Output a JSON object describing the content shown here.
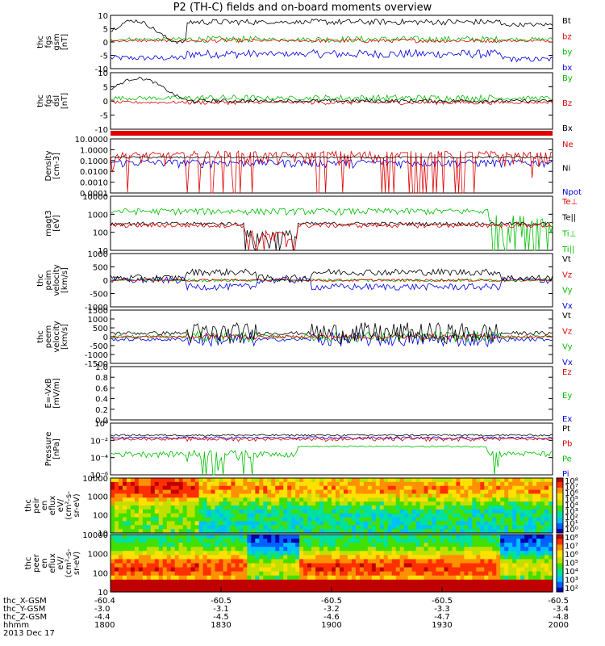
{
  "title": "P2 (TH-C) fields and on-board moments overview",
  "chart_data": {
    "type": "line",
    "panels": [
      {
        "id": "fgs_gsm",
        "ylabel": [
          "thc",
          "fgs",
          "gsm",
          "[nT]"
        ],
        "yticks": [
          "10",
          "5",
          "0",
          "-5",
          "-10"
        ],
        "ylim": [
          -10,
          10
        ],
        "legend": [
          {
            "name": "Bt",
            "color": "#000000"
          },
          {
            "name": "bz",
            "color": "#e00000"
          },
          {
            "name": "by",
            "color": "#00c000"
          },
          {
            "name": "bx",
            "color": "#0000e0"
          }
        ]
      },
      {
        "id": "fgs_dsl",
        "ylabel": [
          "thc",
          "fgs",
          "dsl",
          "[nT]"
        ],
        "yticks": [
          "10",
          "5",
          "0",
          "-5",
          "-10"
        ],
        "ylim": [
          -10,
          10
        ],
        "legend": [
          {
            "name": "By",
            "color": "#00c000"
          },
          {
            "name": "Bz",
            "color": "#e00000"
          },
          {
            "name": "Bx",
            "color": "#000000"
          }
        ]
      },
      {
        "id": "density",
        "ylabel": [
          "Density",
          "[cm-3]"
        ],
        "yticks": [
          "10.0000",
          "1.0000",
          "0.1000",
          "0.0100",
          "0.0010",
          "0.0001"
        ],
        "ylim": [
          0.0001,
          10
        ],
        "log": true,
        "legend": [
          {
            "name": "Ne",
            "color": "#e00000"
          },
          {
            "name": "Ni",
            "color": "#000000"
          },
          {
            "name": "Npot",
            "color": "#0000e0"
          }
        ]
      },
      {
        "id": "temperature",
        "ylabel": [
          "magt3",
          "[eV]"
        ],
        "yticks": [
          "10000",
          "1000",
          "100",
          "10"
        ],
        "ylim": [
          10,
          10000
        ],
        "log": true,
        "legend": [
          {
            "name": "Te⊥",
            "color": "#e00000"
          },
          {
            "name": "Te||",
            "color": "#000000"
          },
          {
            "name": "Ti⊥",
            "color": "#00c000"
          },
          {
            "name": "Ti||",
            "color": "#00c000"
          }
        ]
      },
      {
        "id": "peim_velocity",
        "ylabel": [
          "thc",
          "peim",
          "velocity",
          "[km/s]"
        ],
        "yticks": [
          "1000",
          "500",
          "0",
          "-500",
          "-1000"
        ],
        "ylim": [
          -1000,
          1000
        ],
        "legend": [
          {
            "name": "Vt",
            "color": "#000000"
          },
          {
            "name": "Vz",
            "color": "#e00000"
          },
          {
            "name": "Vy",
            "color": "#00c000"
          },
          {
            "name": "Vx",
            "color": "#0000e0"
          }
        ]
      },
      {
        "id": "peem_velocity",
        "ylabel": [
          "thc",
          "peem",
          "velocity",
          "[km/s]"
        ],
        "yticks": [
          "1500",
          "1000",
          "500",
          "0",
          "-500",
          "-1000",
          "-1500"
        ],
        "ylim": [
          -1500,
          1500
        ],
        "legend": [
          {
            "name": "Vt",
            "color": "#000000"
          },
          {
            "name": "Vz",
            "color": "#e00000"
          },
          {
            "name": "Vy",
            "color": "#00c000"
          },
          {
            "name": "Vx",
            "color": "#0000e0"
          }
        ]
      },
      {
        "id": "efield",
        "ylabel": [
          "E=-VxB",
          "[mV/m]"
        ],
        "yticks": [
          "1.0",
          "0.8",
          "0.6",
          "0.4",
          "0.2",
          "0.0"
        ],
        "ylim": [
          0,
          1
        ],
        "legend": [
          {
            "name": "Ez",
            "color": "#e00000"
          },
          {
            "name": "Ey",
            "color": "#00c000"
          },
          {
            "name": "Ex",
            "color": "#0000e0"
          }
        ]
      },
      {
        "id": "pressure",
        "ylabel": [
          "Pressure",
          "[nPa]"
        ],
        "yticks": [
          "10⁰",
          "10⁻²",
          "10⁻⁴",
          "10⁻⁶"
        ],
        "ylim": [
          1e-06,
          1
        ],
        "log": true,
        "legend": [
          {
            "name": "Pt",
            "color": "#000000"
          },
          {
            "name": "Pb",
            "color": "#e00000"
          },
          {
            "name": "Pe",
            "color": "#00c000"
          },
          {
            "name": "Pi",
            "color": "#0000e0"
          }
        ]
      },
      {
        "id": "peir_spec",
        "ylabel": [
          "thc",
          "peir",
          "en",
          "eflux",
          "eV/",
          "(cm²-s-",
          "sr-eV)"
        ],
        "yticks": [
          "10000",
          "1000",
          "100",
          "10"
        ],
        "spectrogram": true,
        "colorbar": [
          "10⁸",
          "10⁷",
          "10⁶",
          "10⁵",
          "10⁴",
          "10³",
          "10²",
          "10¹",
          "10⁰"
        ]
      },
      {
        "id": "peer_spec",
        "ylabel": [
          "thc",
          "peer",
          "en",
          "eflux",
          "eV/",
          "(cm²-s-",
          "sr-eV)"
        ],
        "yticks": [
          "10000",
          "1000",
          "100",
          "10"
        ],
        "spectrogram": true,
        "colorbar": [
          "10⁸",
          "10⁷",
          "10⁶",
          "10⁵",
          "10⁴",
          "10³",
          "10²"
        ]
      }
    ],
    "x_axis": {
      "row_labels": [
        "thc_X-GSM",
        "thc_Y-GSM",
        "thc_Z-GSM",
        "hhmm",
        "2013 Dec 17"
      ],
      "ticks": [
        {
          "x": "-60.4",
          "y": "-3.0",
          "z": "-4.4",
          "hhmm": "1800"
        },
        {
          "x": "-60.5",
          "y": "-3.1",
          "z": "-4.5",
          "hhmm": "1830"
        },
        {
          "x": "-60.5",
          "y": "-3.2",
          "z": "-4.6",
          "hhmm": "1900"
        },
        {
          "x": "-60.5",
          "y": "-3.3",
          "z": "-4.7",
          "hhmm": "1930"
        },
        {
          "x": "-60.5",
          "y": "-3.4",
          "z": "-4.8",
          "hhmm": "2000"
        }
      ]
    }
  }
}
